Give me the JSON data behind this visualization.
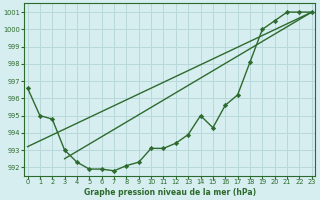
{
  "title": "Graphe pression niveau de la mer (hPa)",
  "bg_color": "#d6eef0",
  "grid_color": "#b8d8da",
  "line_color": "#2d6a2d",
  "marker_color": "#2d6a2d",
  "xlim": [
    -0.3,
    23.3
  ],
  "ylim": [
    991.5,
    1001.5
  ],
  "yticks": [
    992,
    993,
    994,
    995,
    996,
    997,
    998,
    999,
    1000,
    1001
  ],
  "xticks": [
    0,
    1,
    2,
    3,
    4,
    5,
    6,
    7,
    8,
    9,
    10,
    11,
    12,
    13,
    14,
    15,
    16,
    17,
    18,
    19,
    20,
    21,
    22,
    23
  ],
  "series_main": {
    "x": [
      0,
      1,
      2,
      3,
      4,
      5,
      6,
      7,
      8,
      9,
      10,
      11,
      12,
      13,
      14,
      15,
      16,
      17,
      18,
      19,
      20,
      21,
      22,
      23
    ],
    "y": [
      996.6,
      995.0,
      994.8,
      993.0,
      992.3,
      991.9,
      991.9,
      991.8,
      992.1,
      992.3,
      993.1,
      993.1,
      993.4,
      993.9,
      995.0,
      994.3,
      995.6,
      996.2,
      998.1,
      1000.0,
      1000.5,
      1001.0,
      1001.0,
      1001.0
    ]
  },
  "series_line1": {
    "x": [
      0,
      23
    ],
    "y": [
      993.2,
      1001.0
    ]
  },
  "series_line2": {
    "x": [
      3,
      23
    ],
    "y": [
      992.5,
      1001.0
    ]
  },
  "title_fontsize": 5.5,
  "tick_fontsize": 4.8
}
